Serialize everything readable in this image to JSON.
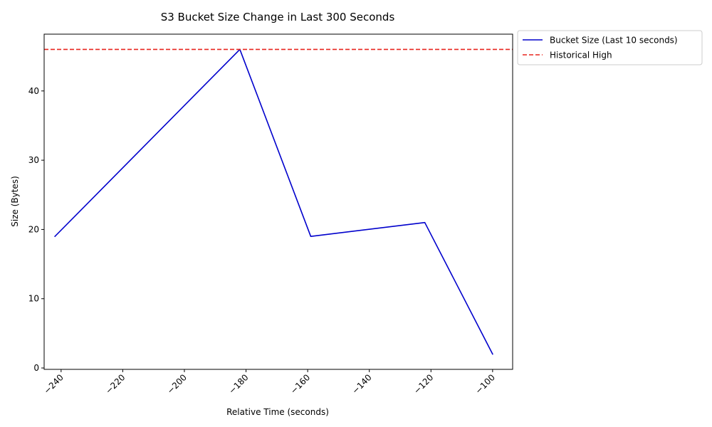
{
  "chart_data": {
    "type": "line",
    "title": "S3 Bucket Size Change in Last 300 Seconds",
    "xlabel": "Relative Time (seconds)",
    "ylabel": "Size (Bytes)",
    "xlim": [
      -245.5,
      -93.5
    ],
    "ylim": [
      -0.2,
      48.2
    ],
    "xticks": [
      -240,
      -220,
      -200,
      -180,
      -160,
      -140,
      -120,
      -100
    ],
    "xtick_labels": [
      "−240",
      "−220",
      "−200",
      "−180",
      "−160",
      "−140",
      "−120",
      "−100"
    ],
    "yticks": [
      0,
      10,
      20,
      30,
      40
    ],
    "ytick_labels": [
      "0",
      "10",
      "20",
      "30",
      "40"
    ],
    "grid": false,
    "legend_position": "outside-top-right",
    "series": [
      {
        "name": "Bucket Size (Last 10 seconds)",
        "color": "#0000cc",
        "style": "solid",
        "x": [
          -242,
          -182,
          -159,
          -122,
          -100
        ],
        "y": [
          19,
          46,
          19,
          21,
          2
        ]
      }
    ],
    "reference_lines": [
      {
        "name": "Historical High",
        "orientation": "horizontal",
        "y": 46,
        "color": "#e8251f",
        "style": "dashed"
      }
    ]
  }
}
